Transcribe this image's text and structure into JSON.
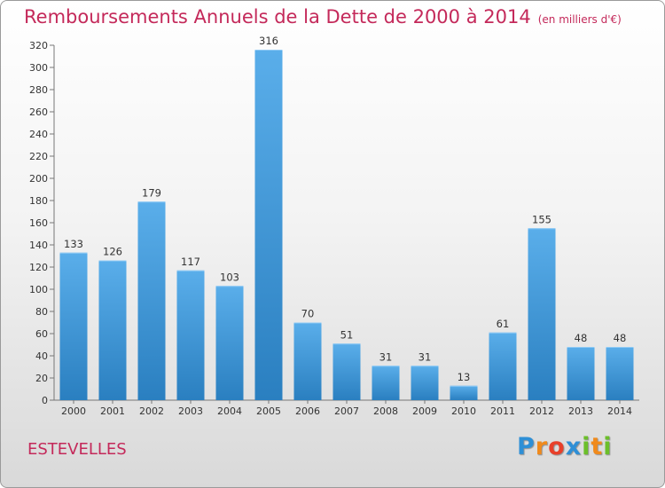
{
  "chart_data": {
    "type": "bar",
    "title": "Remboursements Annuels de la Dette de 2000 à 2014",
    "unit_label": "(en milliers d'€)",
    "xlabel": "",
    "ylabel": "",
    "categories": [
      "2000",
      "2001",
      "2002",
      "2003",
      "2004",
      "2005",
      "2006",
      "2007",
      "2008",
      "2009",
      "2010",
      "2011",
      "2012",
      "2013",
      "2014"
    ],
    "values": [
      133,
      126,
      179,
      117,
      103,
      316,
      70,
      51,
      31,
      31,
      13,
      61,
      155,
      48,
      48
    ],
    "ylim": [
      0,
      320
    ],
    "yticks": [
      0,
      20,
      40,
      60,
      80,
      100,
      120,
      140,
      160,
      180,
      200,
      220,
      240,
      260,
      280,
      300,
      320
    ],
    "grid": false,
    "legend": "none",
    "bar_color_top": "#5aaeea",
    "bar_color_bottom": "#2a7fc0"
  },
  "commune": "ESTEVELLES",
  "brand": {
    "letters": [
      {
        "ch": "P",
        "color": "#2e8fd6"
      },
      {
        "ch": "r",
        "color": "#f08a1c"
      },
      {
        "ch": "o",
        "color": "#e8402a"
      },
      {
        "ch": "x",
        "color": "#2e8fd6"
      },
      {
        "ch": "i",
        "color": "#6cbf2a"
      },
      {
        "ch": "t",
        "color": "#f08a1c"
      },
      {
        "ch": "i",
        "color": "#6cbf2a"
      }
    ]
  }
}
